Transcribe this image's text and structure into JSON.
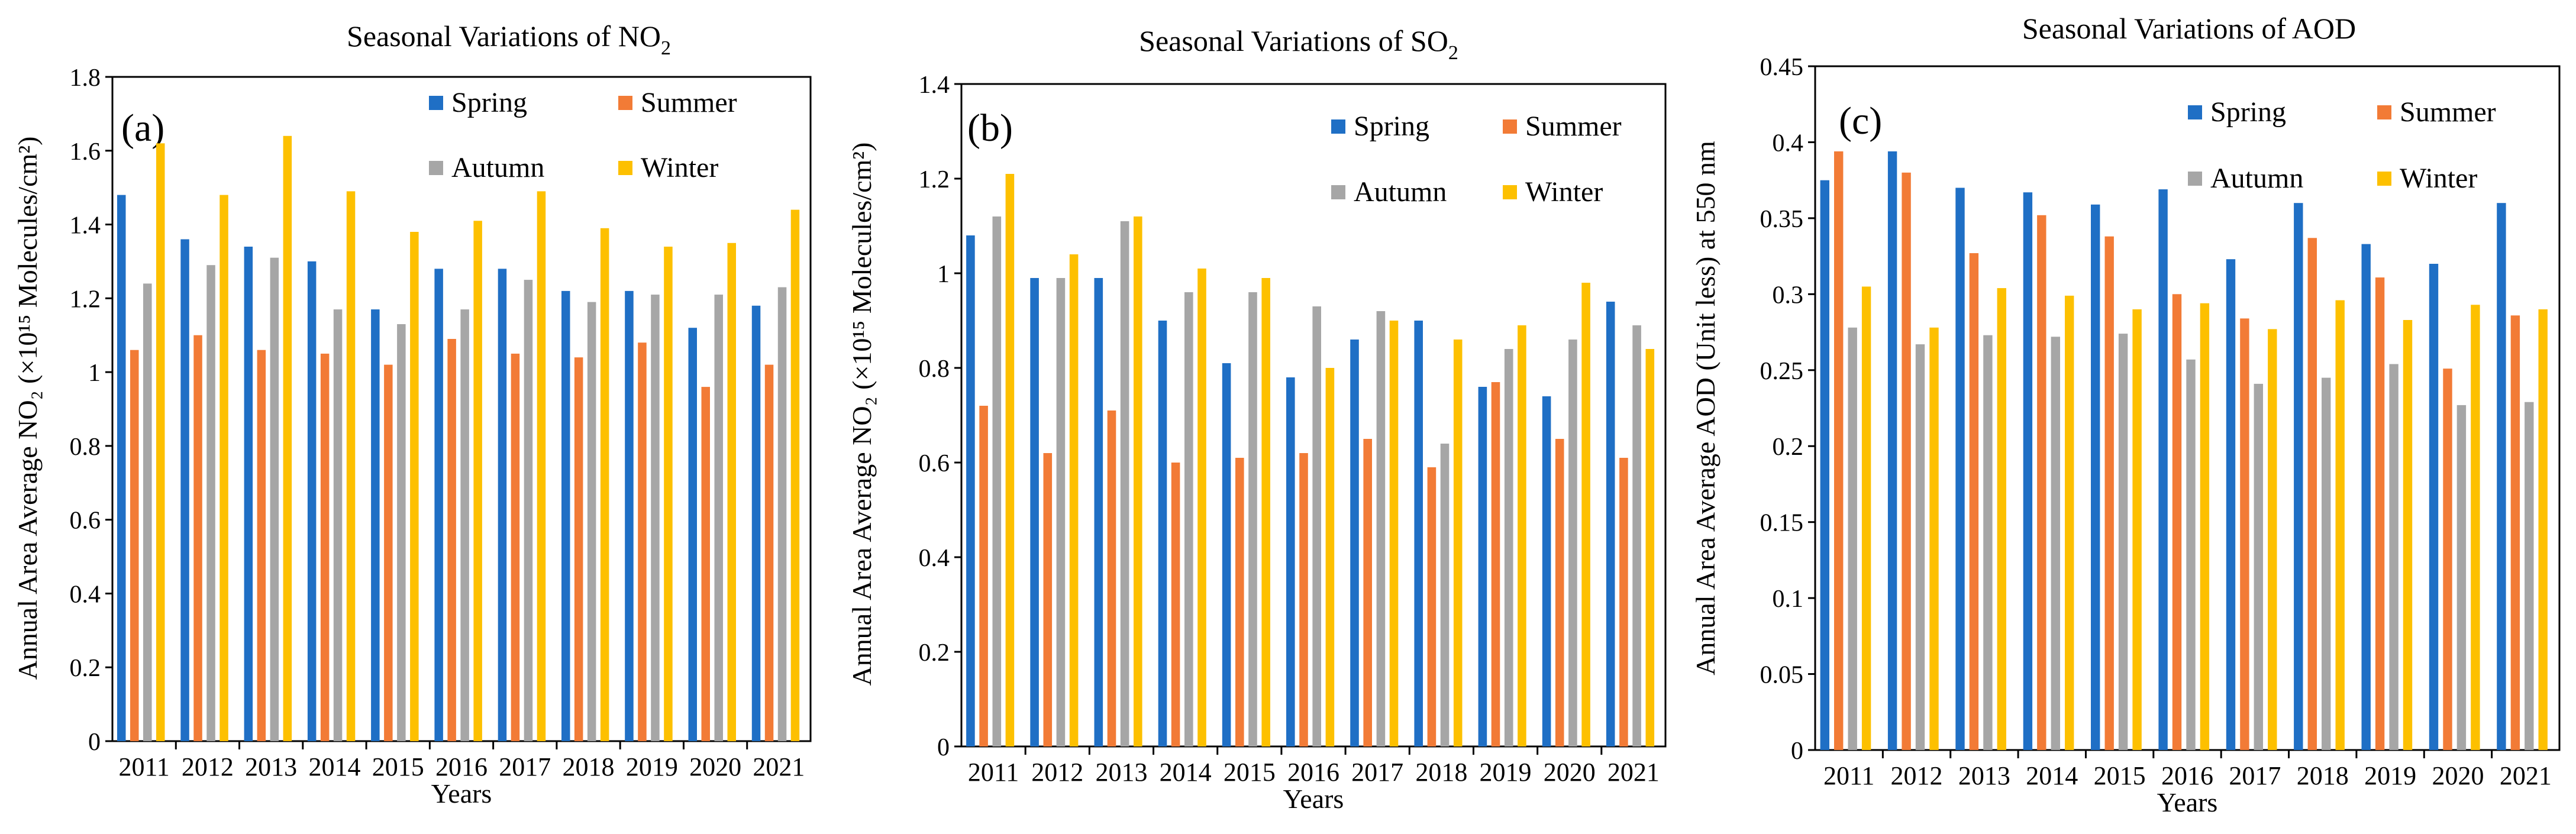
{
  "colors": {
    "Spring": "#1f6fc5",
    "Summer": "#f27b36",
    "Autumn": "#a6a6a6",
    "Winter": "#fdc000"
  },
  "chart_data": [
    {
      "type": "bar",
      "panel_label": "(a)",
      "title_main": "Seasonal Variations of NO",
      "title_sub": "2",
      "xlabel": "Years",
      "ylabel": "Annual Area Average NO₂ (×10¹⁵ Molecules/cm²)",
      "ylim": [
        0,
        1.8
      ],
      "yticks": [
        "0",
        "0.2",
        "0.4",
        "0.6",
        "0.8",
        "1",
        "1.2",
        "1.4",
        "1.6",
        "1.8"
      ],
      "categories": [
        "2011",
        "2012",
        "2013",
        "2014",
        "2015",
        "2016",
        "2017",
        "2018",
        "2019",
        "2020",
        "2021"
      ],
      "legend_position": "top-right",
      "series": [
        {
          "name": "Spring",
          "values": [
            1.48,
            1.36,
            1.34,
            1.3,
            1.17,
            1.28,
            1.28,
            1.22,
            1.22,
            1.12,
            1.18
          ]
        },
        {
          "name": "Summer",
          "values": [
            1.06,
            1.1,
            1.06,
            1.05,
            1.02,
            1.09,
            1.05,
            1.04,
            1.08,
            0.96,
            1.02
          ]
        },
        {
          "name": "Autumn",
          "values": [
            1.24,
            1.29,
            1.31,
            1.17,
            1.13,
            1.17,
            1.25,
            1.19,
            1.21,
            1.21,
            1.23
          ]
        },
        {
          "name": "Winter",
          "values": [
            1.62,
            1.48,
            1.64,
            1.49,
            1.38,
            1.41,
            1.49,
            1.39,
            1.34,
            1.35,
            1.44
          ]
        }
      ]
    },
    {
      "type": "bar",
      "panel_label": "(b)",
      "title_main": "Seasonal Variations of SO",
      "title_sub": "2",
      "xlabel": "Years",
      "ylabel": "Annual Area Average NO₂ (×10¹⁵ Molecules/cm²)",
      "ylim": [
        0,
        1.4
      ],
      "yticks": [
        "0",
        "0.2",
        "0.4",
        "0.6",
        "0.8",
        "1",
        "1.2",
        "1.4"
      ],
      "categories": [
        "2011",
        "2012",
        "2013",
        "2014",
        "2015",
        "2016",
        "2017",
        "2018",
        "2019",
        "2020",
        "2021"
      ],
      "legend_position": "top-right",
      "series": [
        {
          "name": "Spring",
          "values": [
            1.08,
            0.99,
            0.99,
            0.9,
            0.81,
            0.78,
            0.86,
            0.9,
            0.76,
            0.74,
            0.94
          ]
        },
        {
          "name": "Summer",
          "values": [
            0.72,
            0.62,
            0.71,
            0.6,
            0.61,
            0.62,
            0.65,
            0.59,
            0.77,
            0.65,
            0.61
          ]
        },
        {
          "name": "Autumn",
          "values": [
            1.12,
            0.99,
            1.11,
            0.96,
            0.96,
            0.93,
            0.92,
            0.64,
            0.84,
            0.86,
            0.89
          ]
        },
        {
          "name": "Winter",
          "values": [
            1.21,
            1.04,
            1.12,
            1.01,
            0.99,
            0.8,
            0.9,
            0.86,
            0.89,
            0.98,
            0.84
          ]
        }
      ]
    },
    {
      "type": "bar",
      "panel_label": "(c)",
      "title_main": "Seasonal Variations of AOD",
      "title_sub": "",
      "xlabel": "Years",
      "ylabel": "Annual Area Average AOD (Unit less) at 550 nm",
      "ylim": [
        0,
        0.45
      ],
      "yticks": [
        "0",
        "0.05",
        "0.1",
        "0.15",
        "0.2",
        "0.25",
        "0.3",
        "0.35",
        "0.4",
        "0.45"
      ],
      "categories": [
        "2011",
        "2012",
        "2013",
        "2014",
        "2015",
        "2016",
        "2017",
        "2018",
        "2019",
        "2020",
        "2021"
      ],
      "legend_position": "top-right",
      "series": [
        {
          "name": "Spring",
          "values": [
            0.375,
            0.394,
            0.37,
            0.367,
            0.359,
            0.369,
            0.323,
            0.36,
            0.333,
            0.32,
            0.36
          ]
        },
        {
          "name": "Summer",
          "values": [
            0.394,
            0.38,
            0.327,
            0.352,
            0.338,
            0.3,
            0.284,
            0.337,
            0.311,
            0.251,
            0.286
          ]
        },
        {
          "name": "Autumn",
          "values": [
            0.278,
            0.267,
            0.273,
            0.272,
            0.274,
            0.257,
            0.241,
            0.245,
            0.254,
            0.227,
            0.229
          ]
        },
        {
          "name": "Winter",
          "values": [
            0.305,
            0.278,
            0.304,
            0.299,
            0.29,
            0.294,
            0.277,
            0.296,
            0.283,
            0.293,
            0.29
          ]
        }
      ]
    }
  ]
}
